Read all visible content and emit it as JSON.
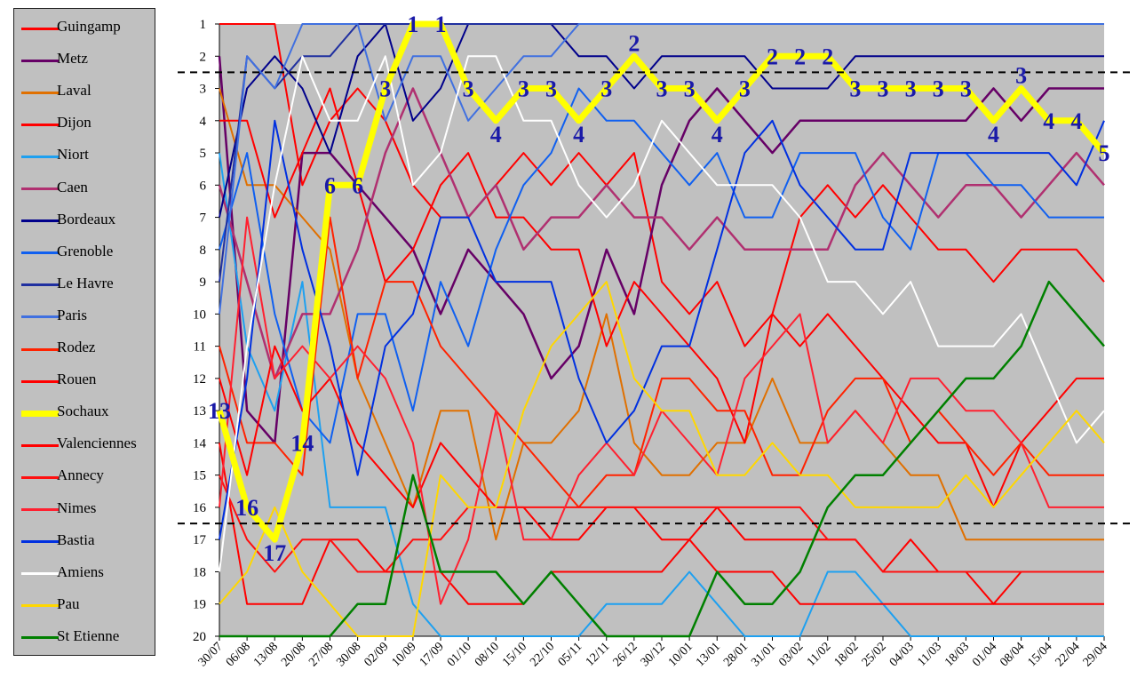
{
  "chart_data": {
    "type": "line",
    "title": "",
    "xlabel": "",
    "ylabel": "",
    "ylim": [
      1,
      20
    ],
    "y_axis_inverted": true,
    "grid": false,
    "plot_background": "#c0c0c0",
    "legend_position": "left",
    "x": [
      "30/07",
      "06/08",
      "13/08",
      "20/08",
      "27/08",
      "30/08",
      "02/09",
      "10/09",
      "17/09",
      "01/10",
      "08/10",
      "15/10",
      "22/10",
      "05/11",
      "12/11",
      "26/12",
      "30/12",
      "10/01",
      "13/01",
      "28/01",
      "31/01",
      "03/02",
      "11/02",
      "18/02",
      "25/02",
      "04/03",
      "11/03",
      "18/03",
      "01/04",
      "08/04",
      "15/04",
      "22/04",
      "29/04"
    ],
    "y_ticks": [
      "1",
      "2",
      "3",
      "4",
      "5",
      "6",
      "7",
      "8",
      "9",
      "10",
      "11",
      "12",
      "13",
      "14",
      "15",
      "16",
      "17",
      "18",
      "19",
      "20"
    ],
    "reference_lines": [
      2.5,
      16.5
    ],
    "series": [
      {
        "name": "Guingamp",
        "color": "#ff0000",
        "width": 2,
        "values": [
          1,
          1,
          1,
          6,
          4,
          3,
          4,
          6,
          7,
          7,
          6,
          5,
          6,
          5,
          6,
          5,
          9,
          10,
          9,
          11,
          10,
          7,
          6,
          7,
          6,
          7,
          8,
          8,
          9,
          8,
          8,
          8,
          9
        ]
      },
      {
        "name": "Metz",
        "color": "#660066",
        "width": 2.5,
        "values": [
          2,
          13,
          14,
          5,
          5,
          6,
          7,
          8,
          10,
          8,
          9,
          10,
          12,
          11,
          8,
          10,
          6,
          4,
          3,
          4,
          5,
          4,
          4,
          4,
          4,
          4,
          4,
          4,
          3,
          4,
          3,
          3,
          3
        ]
      },
      {
        "name": "Laval",
        "color": "#e07000",
        "width": 2,
        "values": [
          3,
          6,
          6,
          7,
          8,
          12,
          14,
          16,
          13,
          13,
          17,
          14,
          14,
          13,
          10,
          14,
          15,
          15,
          14,
          14,
          12,
          14,
          14,
          13,
          14,
          15,
          15,
          17,
          17,
          17,
          17,
          17,
          17
        ]
      },
      {
        "name": "Dijon",
        "color": "#ff0000",
        "width": 2,
        "values": [
          4,
          4,
          7,
          5,
          3,
          6,
          9,
          8,
          6,
          5,
          7,
          7,
          8,
          8,
          11,
          9,
          10,
          11,
          12,
          14,
          10,
          11,
          10,
          11,
          12,
          13,
          14,
          14,
          16,
          14,
          13,
          12,
          12
        ]
      },
      {
        "name": "Niort",
        "color": "#1ea0f0",
        "width": 2,
        "values": [
          5,
          11,
          13,
          9,
          16,
          16,
          16,
          19,
          20,
          20,
          20,
          20,
          20,
          20,
          19,
          19,
          19,
          18,
          19,
          20,
          20,
          20,
          18,
          18,
          19,
          20,
          20,
          20,
          20,
          20,
          20,
          20,
          20
        ]
      },
      {
        "name": "Caen",
        "color": "#b03070",
        "width": 2.5,
        "values": [
          6,
          9,
          12,
          10,
          10,
          8,
          5,
          3,
          5,
          7,
          6,
          8,
          7,
          7,
          6,
          7,
          7,
          8,
          7,
          8,
          8,
          8,
          8,
          6,
          5,
          6,
          7,
          6,
          6,
          7,
          6,
          5,
          6
        ]
      },
      {
        "name": "Bordeaux",
        "color": "#00008b",
        "width": 2,
        "values": [
          7,
          3,
          2,
          3,
          5,
          2,
          1,
          4,
          3,
          1,
          1,
          1,
          1,
          2,
          2,
          3,
          2,
          2,
          2,
          2,
          3,
          3,
          3,
          2,
          2,
          2,
          2,
          2,
          2,
          2,
          2,
          2,
          2
        ]
      },
      {
        "name": "Grenoble",
        "color": "#1060f0",
        "width": 2,
        "values": [
          8,
          5,
          10,
          13,
          14,
          10,
          10,
          13,
          9,
          11,
          8,
          6,
          5,
          3,
          4,
          4,
          5,
          6,
          5,
          7,
          7,
          5,
          5,
          5,
          7,
          8,
          5,
          5,
          6,
          6,
          7,
          7,
          7
        ]
      },
      {
        "name": "Le Havre",
        "color": "#2030a0",
        "width": 2,
        "values": [
          9,
          2,
          3,
          2,
          2,
          1,
          1,
          1,
          1,
          1,
          1,
          1,
          1,
          1,
          1,
          1,
          1,
          1,
          1,
          1,
          1,
          1,
          1,
          1,
          1,
          1,
          1,
          1,
          1,
          1,
          1,
          1,
          1
        ]
      },
      {
        "name": "Paris",
        "color": "#4070e0",
        "width": 2,
        "values": [
          10,
          2,
          3,
          1,
          1,
          1,
          4,
          2,
          2,
          4,
          3,
          2,
          2,
          1,
          1,
          1,
          1,
          1,
          1,
          1,
          1,
          1,
          1,
          1,
          1,
          1,
          1,
          1,
          1,
          1,
          1,
          1,
          1
        ]
      },
      {
        "name": "Rodez",
        "color": "#ff2200",
        "width": 2,
        "values": [
          11,
          14,
          14,
          15,
          7,
          12,
          9,
          9,
          11,
          12,
          13,
          14,
          15,
          16,
          15,
          15,
          12,
          12,
          13,
          13,
          15,
          15,
          13,
          12,
          12,
          14,
          13,
          14,
          15,
          14,
          15,
          15,
          15
        ]
      },
      {
        "name": "Rouen",
        "color": "#ff0000",
        "width": 2,
        "values": [
          12,
          15,
          11,
          13,
          12,
          14,
          15,
          16,
          14,
          15,
          16,
          16,
          17,
          17,
          16,
          16,
          17,
          17,
          16,
          17,
          17,
          17,
          17,
          17,
          18,
          17,
          18,
          18,
          19,
          18,
          18,
          18,
          18
        ]
      },
      {
        "name": "Sochaux",
        "color": "#ffff00",
        "width": 7,
        "values": [
          13,
          16,
          17,
          14,
          6,
          6,
          3,
          1,
          1,
          3,
          4,
          3,
          3,
          4,
          3,
          2,
          3,
          3,
          4,
          3,
          2,
          2,
          2,
          3,
          3,
          3,
          3,
          3,
          4,
          3,
          4,
          4,
          5
        ]
      },
      {
        "name": "Valenciennes",
        "color": "#ff0000",
        "width": 2,
        "values": [
          14,
          19,
          19,
          19,
          17,
          17,
          18,
          18,
          18,
          19,
          19,
          19,
          18,
          18,
          18,
          18,
          18,
          17,
          18,
          18,
          18,
          19,
          19,
          19,
          19,
          19,
          19,
          19,
          19,
          19,
          19,
          19,
          19
        ]
      },
      {
        "name": "Annecy",
        "color": "#ff1010",
        "width": 2,
        "values": [
          15,
          17,
          18,
          17,
          17,
          18,
          18,
          17,
          17,
          16,
          16,
          16,
          16,
          16,
          16,
          16,
          16,
          16,
          16,
          16,
          16,
          16,
          17,
          17,
          18,
          18,
          18,
          18,
          18,
          18,
          18,
          18,
          18
        ]
      },
      {
        "name": "Nimes",
        "color": "#ff2030",
        "width": 2,
        "values": [
          16,
          7,
          12,
          11,
          12,
          11,
          12,
          14,
          19,
          17,
          13,
          17,
          17,
          15,
          14,
          15,
          13,
          14,
          15,
          12,
          11,
          10,
          14,
          13,
          14,
          12,
          12,
          13,
          13,
          14,
          16,
          16,
          16
        ]
      },
      {
        "name": "Bastia",
        "color": "#0030e0",
        "width": 2,
        "values": [
          17,
          12,
          4,
          8,
          11,
          15,
          11,
          10,
          7,
          7,
          9,
          9,
          9,
          12,
          14,
          13,
          11,
          11,
          8,
          5,
          4,
          6,
          7,
          8,
          8,
          5,
          5,
          5,
          5,
          5,
          5,
          6,
          4
        ]
      },
      {
        "name": "Amiens",
        "color": "#ffffff",
        "width": 2,
        "values": [
          18,
          11,
          6,
          2,
          4,
          4,
          2,
          6,
          5,
          2,
          2,
          4,
          4,
          6,
          7,
          6,
          4,
          5,
          6,
          6,
          6,
          7,
          9,
          9,
          10,
          9,
          11,
          11,
          11,
          10,
          12,
          14,
          13
        ]
      },
      {
        "name": "Pau",
        "color": "#ffd700",
        "width": 2,
        "values": [
          19,
          18,
          16,
          18,
          19,
          20,
          20,
          20,
          15,
          16,
          16,
          13,
          11,
          10,
          9,
          12,
          13,
          13,
          15,
          15,
          14,
          15,
          15,
          16,
          16,
          16,
          16,
          15,
          16,
          15,
          14,
          13,
          14
        ]
      },
      {
        "name": "St Etienne",
        "color": "#008000",
        "width": 2.5,
        "values": [
          20,
          20,
          20,
          20,
          20,
          19,
          19,
          15,
          18,
          18,
          18,
          19,
          18,
          19,
          20,
          20,
          20,
          20,
          18,
          19,
          19,
          18,
          16,
          15,
          15,
          14,
          13,
          12,
          12,
          11,
          9,
          10,
          11
        ]
      }
    ],
    "annotations": [
      {
        "series": "Sochaux",
        "x": "30/07",
        "text": "13"
      },
      {
        "series": "Sochaux",
        "x": "06/08",
        "text": "16"
      },
      {
        "series": "Sochaux",
        "x": "13/08",
        "text": "17"
      },
      {
        "series": "Sochaux",
        "x": "20/08",
        "text": "14"
      },
      {
        "series": "Sochaux",
        "x": "27/08",
        "text": "6"
      },
      {
        "series": "Sochaux",
        "x": "30/08",
        "text": "6"
      },
      {
        "series": "Sochaux",
        "x": "02/09",
        "text": "3"
      },
      {
        "series": "Sochaux",
        "x": "10/09",
        "text": "1"
      },
      {
        "series": "Sochaux",
        "x": "17/09",
        "text": "1"
      },
      {
        "series": "Sochaux",
        "x": "01/10",
        "text": "3"
      },
      {
        "series": "Sochaux",
        "x": "08/10",
        "text": "4"
      },
      {
        "series": "Sochaux",
        "x": "15/10",
        "text": "3"
      },
      {
        "series": "Sochaux",
        "x": "22/10",
        "text": "3"
      },
      {
        "series": "Sochaux",
        "x": "05/11",
        "text": "4"
      },
      {
        "series": "Sochaux",
        "x": "12/11",
        "text": "3"
      },
      {
        "series": "Sochaux",
        "x": "26/12",
        "text": "2"
      },
      {
        "series": "Sochaux",
        "x": "30/12",
        "text": "3"
      },
      {
        "series": "Sochaux",
        "x": "10/01",
        "text": "3"
      },
      {
        "series": "Sochaux",
        "x": "13/01",
        "text": "4"
      },
      {
        "series": "Sochaux",
        "x": "28/01",
        "text": "3"
      },
      {
        "series": "Sochaux",
        "x": "31/01",
        "text": "2"
      },
      {
        "series": "Sochaux",
        "x": "03/02",
        "text": "2"
      },
      {
        "series": "Sochaux",
        "x": "11/02",
        "text": "2"
      },
      {
        "series": "Sochaux",
        "x": "18/02",
        "text": "3"
      },
      {
        "series": "Sochaux",
        "x": "25/02",
        "text": "3"
      },
      {
        "series": "Sochaux",
        "x": "04/03",
        "text": "3"
      },
      {
        "series": "Sochaux",
        "x": "11/03",
        "text": "3"
      },
      {
        "series": "Sochaux",
        "x": "18/03",
        "text": "3"
      },
      {
        "series": "Sochaux",
        "x": "01/04",
        "text": "4"
      },
      {
        "series": "Sochaux",
        "x": "08/04",
        "text": "3"
      },
      {
        "series": "Sochaux",
        "x": "15/04",
        "text": "4"
      },
      {
        "series": "Sochaux",
        "x": "22/04",
        "text": "4"
      },
      {
        "series": "Sochaux",
        "x": "29/04",
        "text": "5"
      }
    ],
    "annotation_color": "#1a1aa8"
  }
}
